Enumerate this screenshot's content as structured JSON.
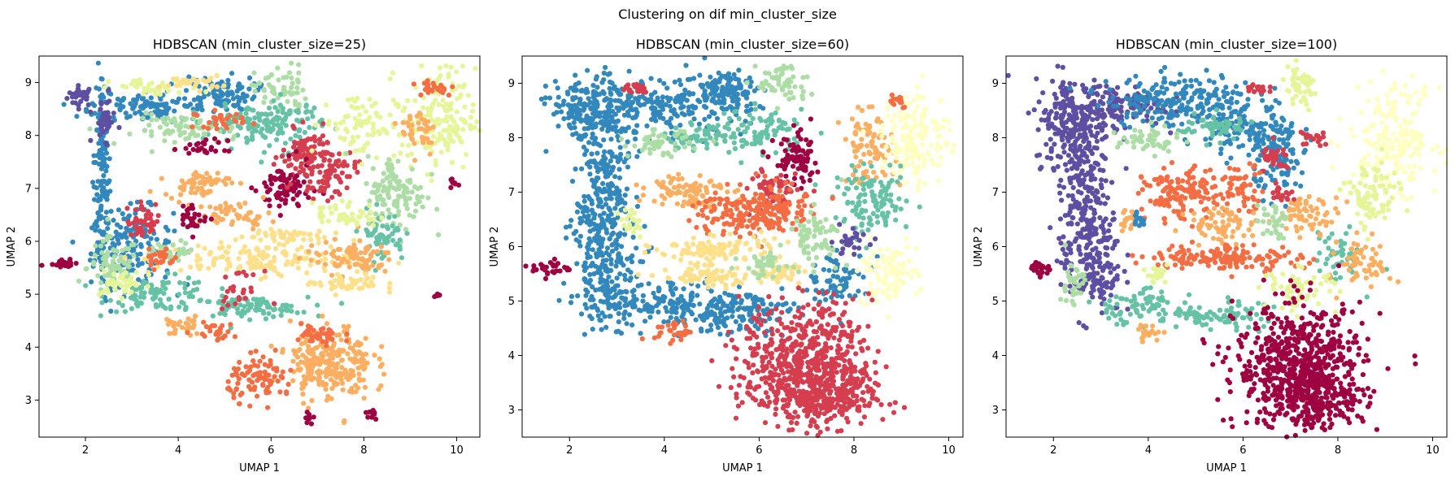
{
  "suptitle": "Clustering on dif min_cluster_size",
  "chart_data": [
    {
      "type": "scatter",
      "title": "HDBSCAN (min_cluster_size=25)",
      "xlabel": "UMAP 1",
      "ylabel": "UMAP 2",
      "xlim": [
        1.0,
        10.5
      ],
      "ylim": [
        2.3,
        9.5
      ],
      "xticks": [
        2,
        4,
        6,
        8,
        10
      ],
      "yticks": [
        3,
        4,
        5,
        6,
        7,
        8,
        9
      ],
      "colormap": "Spectral",
      "clusters": [
        {
          "color": "#5e4fa2",
          "x": 1.9,
          "y": 8.75,
          "rx": 0.18,
          "ry": 0.12,
          "n": 30
        },
        {
          "color": "#3288bd",
          "x": 2.35,
          "y": 7.2,
          "rx": 0.12,
          "ry": 1.4,
          "n": 150
        },
        {
          "color": "#3288bd",
          "x": 3.0,
          "y": 5.9,
          "rx": 0.55,
          "ry": 0.45,
          "n": 160
        },
        {
          "color": "#abdda4",
          "x": 2.6,
          "y": 5.5,
          "rx": 0.35,
          "ry": 0.35,
          "n": 80
        },
        {
          "color": "#66c2a5",
          "x": 3.6,
          "y": 5.0,
          "rx": 0.7,
          "ry": 0.2,
          "n": 90
        },
        {
          "color": "#66c2a5",
          "x": 5.5,
          "y": 4.75,
          "rx": 0.8,
          "ry": 0.12,
          "n": 90
        },
        {
          "color": "#3288bd",
          "x": 3.4,
          "y": 8.55,
          "rx": 0.8,
          "ry": 0.2,
          "n": 110
        },
        {
          "color": "#3288bd",
          "x": 4.9,
          "y": 8.8,
          "rx": 0.5,
          "ry": 0.2,
          "n": 90
        },
        {
          "color": "#abdda4",
          "x": 6.2,
          "y": 8.85,
          "rx": 0.35,
          "ry": 0.3,
          "n": 60
        },
        {
          "color": "#e6f598",
          "x": 3.5,
          "y": 8.9,
          "rx": 0.6,
          "ry": 0.1,
          "n": 40
        },
        {
          "color": "#fee08b",
          "x": 4.3,
          "y": 9.0,
          "rx": 0.4,
          "ry": 0.08,
          "n": 30
        },
        {
          "color": "#66c2a5",
          "x": 5.4,
          "y": 8.25,
          "rx": 0.7,
          "ry": 0.2,
          "n": 80
        },
        {
          "color": "#abdda4",
          "x": 4.2,
          "y": 8.1,
          "rx": 0.7,
          "ry": 0.18,
          "n": 70
        },
        {
          "color": "#f46d43",
          "x": 4.9,
          "y": 8.3,
          "rx": 0.35,
          "ry": 0.1,
          "n": 30
        },
        {
          "color": "#66c2a5",
          "x": 6.3,
          "y": 8.2,
          "rx": 0.5,
          "ry": 0.3,
          "n": 80
        },
        {
          "color": "#d53e4f",
          "x": 6.8,
          "y": 7.6,
          "rx": 0.35,
          "ry": 0.3,
          "n": 90
        },
        {
          "color": "#9e0142",
          "x": 6.3,
          "y": 7.0,
          "rx": 0.35,
          "ry": 0.3,
          "n": 80
        },
        {
          "color": "#d53e4f",
          "x": 7.2,
          "y": 7.3,
          "rx": 0.4,
          "ry": 0.3,
          "n": 70
        },
        {
          "color": "#e6f598",
          "x": 7.9,
          "y": 8.2,
          "rx": 0.5,
          "ry": 0.4,
          "n": 80
        },
        {
          "color": "#e6f598",
          "x": 9.6,
          "y": 8.3,
          "rx": 0.5,
          "ry": 0.6,
          "n": 170
        },
        {
          "color": "#fdae61",
          "x": 9.2,
          "y": 8.1,
          "rx": 0.25,
          "ry": 0.3,
          "n": 40
        },
        {
          "color": "#f46d43",
          "x": 9.5,
          "y": 8.9,
          "rx": 0.3,
          "ry": 0.1,
          "n": 25
        },
        {
          "color": "#abdda4",
          "x": 8.7,
          "y": 6.9,
          "rx": 0.4,
          "ry": 0.45,
          "n": 120
        },
        {
          "color": "#66c2a5",
          "x": 8.4,
          "y": 6.1,
          "rx": 0.3,
          "ry": 0.3,
          "n": 60
        },
        {
          "color": "#fdae61",
          "x": 4.4,
          "y": 7.1,
          "rx": 0.45,
          "ry": 0.15,
          "n": 60
        },
        {
          "color": "#fdae61",
          "x": 5.2,
          "y": 6.5,
          "rx": 0.5,
          "ry": 0.15,
          "n": 50
        },
        {
          "color": "#fee08b",
          "x": 5.6,
          "y": 5.65,
          "rx": 1.4,
          "ry": 0.18,
          "n": 140
        },
        {
          "color": "#fee08b",
          "x": 6.2,
          "y": 6.1,
          "rx": 0.6,
          "ry": 0.1,
          "n": 50
        },
        {
          "color": "#fdae61",
          "x": 7.7,
          "y": 5.7,
          "rx": 0.6,
          "ry": 0.2,
          "n": 80
        },
        {
          "color": "#fee08b",
          "x": 7.6,
          "y": 5.2,
          "rx": 0.5,
          "ry": 0.12,
          "n": 50
        },
        {
          "color": "#e6f598",
          "x": 7.6,
          "y": 6.5,
          "rx": 0.45,
          "ry": 0.15,
          "n": 50
        },
        {
          "color": "#abdda4",
          "x": 3.9,
          "y": 5.8,
          "rx": 0.3,
          "ry": 0.12,
          "n": 40
        },
        {
          "color": "#9e0142",
          "x": 4.3,
          "y": 6.45,
          "rx": 0.2,
          "ry": 0.15,
          "n": 30
        },
        {
          "color": "#d53e4f",
          "x": 3.3,
          "y": 6.4,
          "rx": 0.25,
          "ry": 0.2,
          "n": 40
        },
        {
          "color": "#f46d43",
          "x": 3.6,
          "y": 5.7,
          "rx": 0.2,
          "ry": 0.15,
          "n": 25
        },
        {
          "color": "#fdae61",
          "x": 7.3,
          "y": 3.7,
          "rx": 0.55,
          "ry": 0.45,
          "n": 220
        },
        {
          "color": "#f46d43",
          "x": 5.8,
          "y": 3.4,
          "rx": 0.45,
          "ry": 0.25,
          "n": 90
        },
        {
          "color": "#fdae61",
          "x": 6.9,
          "y": 3.6,
          "rx": 0.3,
          "ry": 0.2,
          "n": 40
        },
        {
          "color": "#f46d43",
          "x": 7.0,
          "y": 4.2,
          "rx": 0.35,
          "ry": 0.15,
          "n": 40
        },
        {
          "color": "#fdae61",
          "x": 4.1,
          "y": 4.4,
          "rx": 0.25,
          "ry": 0.12,
          "n": 30
        },
        {
          "color": "#f46d43",
          "x": 4.8,
          "y": 4.3,
          "rx": 0.3,
          "ry": 0.1,
          "n": 25
        },
        {
          "color": "#9e0142",
          "x": 1.5,
          "y": 5.6,
          "rx": 0.2,
          "ry": 0.06,
          "n": 25
        },
        {
          "color": "#9e0142",
          "x": 8.2,
          "y": 2.75,
          "rx": 0.1,
          "ry": 0.06,
          "n": 12
        },
        {
          "color": "#9e0142",
          "x": 6.8,
          "y": 2.65,
          "rx": 0.05,
          "ry": 0.06,
          "n": 8
        },
        {
          "color": "#9e0142",
          "x": 9.55,
          "y": 5.0,
          "rx": 0.04,
          "ry": 0.05,
          "n": 6
        },
        {
          "color": "#9e0142",
          "x": 9.9,
          "y": 7.1,
          "rx": 0.08,
          "ry": 0.05,
          "n": 8
        },
        {
          "color": "#d53e4f",
          "x": 5.3,
          "y": 5.1,
          "rx": 0.3,
          "ry": 0.2,
          "n": 25
        },
        {
          "color": "#9e0142",
          "x": 4.6,
          "y": 7.75,
          "rx": 0.3,
          "ry": 0.1,
          "n": 25
        },
        {
          "color": "#e6f598",
          "x": 2.8,
          "y": 5.2,
          "rx": 0.3,
          "ry": 0.15,
          "n": 40
        },
        {
          "color": "#5e4fa2",
          "x": 2.4,
          "y": 8.3,
          "rx": 0.15,
          "ry": 0.25,
          "n": 40
        }
      ]
    },
    {
      "type": "scatter",
      "title": "HDBSCAN (min_cluster_size=60)",
      "xlabel": "UMAP 1",
      "ylabel": "UMAP 2",
      "xlim": [
        1.0,
        10.3
      ],
      "ylim": [
        2.5,
        9.5
      ],
      "xticks": [
        2,
        4,
        6,
        8,
        10
      ],
      "yticks": [
        3,
        4,
        5,
        6,
        7,
        8,
        9
      ],
      "colormap": "Spectral",
      "clusters": [
        {
          "color": "#3288bd",
          "x": 2.4,
          "y": 8.5,
          "rx": 0.5,
          "ry": 0.35,
          "n": 160
        },
        {
          "color": "#3288bd",
          "x": 2.7,
          "y": 7.1,
          "rx": 0.35,
          "ry": 1.0,
          "n": 220
        },
        {
          "color": "#3288bd",
          "x": 2.8,
          "y": 5.7,
          "rx": 0.45,
          "ry": 0.7,
          "n": 200
        },
        {
          "color": "#3288bd",
          "x": 4.1,
          "y": 4.95,
          "rx": 1.2,
          "ry": 0.25,
          "n": 190
        },
        {
          "color": "#3288bd",
          "x": 5.6,
          "y": 4.8,
          "rx": 0.7,
          "ry": 0.25,
          "n": 120
        },
        {
          "color": "#3288bd",
          "x": 3.8,
          "y": 8.55,
          "rx": 1.2,
          "ry": 0.3,
          "n": 240
        },
        {
          "color": "#3288bd",
          "x": 5.3,
          "y": 8.9,
          "rx": 0.5,
          "ry": 0.25,
          "n": 110
        },
        {
          "color": "#3288bd",
          "x": 7.7,
          "y": 5.4,
          "rx": 0.4,
          "ry": 0.3,
          "n": 80
        },
        {
          "color": "#abdda4",
          "x": 6.5,
          "y": 9.0,
          "rx": 0.35,
          "ry": 0.25,
          "n": 60
        },
        {
          "color": "#66c2a5",
          "x": 6.0,
          "y": 8.1,
          "rx": 0.6,
          "ry": 0.25,
          "n": 100
        },
        {
          "color": "#66c2a5",
          "x": 4.6,
          "y": 8.0,
          "rx": 0.4,
          "ry": 0.12,
          "n": 50
        },
        {
          "color": "#abdda4",
          "x": 3.9,
          "y": 7.9,
          "rx": 0.4,
          "ry": 0.15,
          "n": 50
        },
        {
          "color": "#9e0142",
          "x": 6.8,
          "y": 7.55,
          "rx": 0.3,
          "ry": 0.3,
          "n": 80
        },
        {
          "color": "#d53e4f",
          "x": 6.3,
          "y": 7.0,
          "rx": 0.3,
          "ry": 0.3,
          "n": 70
        },
        {
          "color": "#fdae61",
          "x": 8.3,
          "y": 7.8,
          "rx": 0.35,
          "ry": 0.4,
          "n": 90
        },
        {
          "color": "#ffffbf",
          "x": 9.3,
          "y": 8.0,
          "rx": 0.45,
          "ry": 0.55,
          "n": 160
        },
        {
          "color": "#66c2a5",
          "x": 8.4,
          "y": 6.8,
          "rx": 0.5,
          "ry": 0.35,
          "n": 120
        },
        {
          "color": "#ffffbf",
          "x": 8.7,
          "y": 5.5,
          "rx": 0.4,
          "ry": 0.35,
          "n": 100
        },
        {
          "color": "#fdae61",
          "x": 4.5,
          "y": 7.05,
          "rx": 0.5,
          "ry": 0.2,
          "n": 90
        },
        {
          "color": "#f46d43",
          "x": 5.7,
          "y": 6.6,
          "rx": 0.7,
          "ry": 0.3,
          "n": 160
        },
        {
          "color": "#f46d43",
          "x": 6.5,
          "y": 6.7,
          "rx": 0.3,
          "ry": 0.25,
          "n": 60
        },
        {
          "color": "#fee08b",
          "x": 5.1,
          "y": 5.95,
          "rx": 0.8,
          "ry": 0.15,
          "n": 110
        },
        {
          "color": "#fee08b",
          "x": 4.9,
          "y": 5.45,
          "rx": 0.6,
          "ry": 0.12,
          "n": 70
        },
        {
          "color": "#fee08b",
          "x": 6.4,
          "y": 5.5,
          "rx": 0.3,
          "ry": 0.12,
          "n": 40
        },
        {
          "color": "#abdda4",
          "x": 7.2,
          "y": 6.2,
          "rx": 0.35,
          "ry": 0.3,
          "n": 70
        },
        {
          "color": "#abdda4",
          "x": 6.1,
          "y": 5.65,
          "rx": 0.3,
          "ry": 0.15,
          "n": 40
        },
        {
          "color": "#5e4fa2",
          "x": 7.9,
          "y": 6.1,
          "rx": 0.25,
          "ry": 0.15,
          "n": 30
        },
        {
          "color": "#e6f598",
          "x": 3.3,
          "y": 6.45,
          "rx": 0.15,
          "ry": 0.15,
          "n": 20
        },
        {
          "color": "#d53e4f",
          "x": 7.0,
          "y": 3.8,
          "rx": 0.85,
          "ry": 0.7,
          "n": 650
        },
        {
          "color": "#d53e4f",
          "x": 7.5,
          "y": 3.2,
          "rx": 0.6,
          "ry": 0.3,
          "n": 150
        },
        {
          "color": "#f46d43",
          "x": 4.2,
          "y": 4.45,
          "rx": 0.25,
          "ry": 0.12,
          "n": 30
        },
        {
          "color": "#9e0142",
          "x": 1.6,
          "y": 5.6,
          "rx": 0.25,
          "ry": 0.1,
          "n": 30
        },
        {
          "color": "#d53e4f",
          "x": 3.4,
          "y": 8.9,
          "rx": 0.2,
          "ry": 0.08,
          "n": 20
        },
        {
          "color": "#f46d43",
          "x": 8.9,
          "y": 8.7,
          "rx": 0.15,
          "ry": 0.1,
          "n": 15
        }
      ]
    },
    {
      "type": "scatter",
      "title": "HDBSCAN (min_cluster_size=100)",
      "xlabel": "UMAP 1",
      "ylabel": "UMAP 2",
      "xlim": [
        1.0,
        10.3
      ],
      "ylim": [
        2.5,
        9.5
      ],
      "xticks": [
        2,
        4,
        6,
        8,
        10
      ],
      "yticks": [
        3,
        4,
        5,
        6,
        7,
        8,
        9
      ],
      "colormap": "Spectral",
      "clusters": [
        {
          "color": "#5e4fa2",
          "x": 2.4,
          "y": 8.3,
          "rx": 0.5,
          "ry": 0.5,
          "n": 180
        },
        {
          "color": "#5e4fa2",
          "x": 2.6,
          "y": 7.2,
          "rx": 0.3,
          "ry": 0.8,
          "n": 170
        },
        {
          "color": "#5e4fa2",
          "x": 3.2,
          "y": 8.6,
          "rx": 0.7,
          "ry": 0.25,
          "n": 130
        },
        {
          "color": "#5e4fa2",
          "x": 2.8,
          "y": 5.8,
          "rx": 0.4,
          "ry": 0.7,
          "n": 200
        },
        {
          "color": "#3288bd",
          "x": 4.7,
          "y": 8.7,
          "rx": 1.0,
          "ry": 0.3,
          "n": 220
        },
        {
          "color": "#3288bd",
          "x": 6.2,
          "y": 8.1,
          "rx": 0.6,
          "ry": 0.3,
          "n": 130
        },
        {
          "color": "#3288bd",
          "x": 6.8,
          "y": 7.5,
          "rx": 0.35,
          "ry": 0.35,
          "n": 80
        },
        {
          "color": "#d53e4f",
          "x": 6.7,
          "y": 7.6,
          "rx": 0.2,
          "ry": 0.15,
          "n": 30
        },
        {
          "color": "#e6f598",
          "x": 7.2,
          "y": 8.9,
          "rx": 0.25,
          "ry": 0.25,
          "n": 50
        },
        {
          "color": "#d53e4f",
          "x": 6.3,
          "y": 8.9,
          "rx": 0.15,
          "ry": 0.1,
          "n": 15
        },
        {
          "color": "#d53e4f",
          "x": 7.5,
          "y": 8.0,
          "rx": 0.2,
          "ry": 0.1,
          "n": 20
        },
        {
          "color": "#ffffbf",
          "x": 9.2,
          "y": 8.0,
          "rx": 0.6,
          "ry": 0.6,
          "n": 200
        },
        {
          "color": "#e6f598",
          "x": 8.7,
          "y": 6.9,
          "rx": 0.35,
          "ry": 0.4,
          "n": 90
        },
        {
          "color": "#66c2a5",
          "x": 8.0,
          "y": 5.8,
          "rx": 0.3,
          "ry": 0.3,
          "n": 50
        },
        {
          "color": "#fdae61",
          "x": 8.6,
          "y": 5.7,
          "rx": 0.35,
          "ry": 0.3,
          "n": 60
        },
        {
          "color": "#66c2a5",
          "x": 5.4,
          "y": 8.2,
          "rx": 0.5,
          "ry": 0.15,
          "n": 60
        },
        {
          "color": "#abdda4",
          "x": 4.0,
          "y": 7.95,
          "rx": 0.4,
          "ry": 0.15,
          "n": 50
        },
        {
          "color": "#f46d43",
          "x": 4.7,
          "y": 6.95,
          "rx": 0.5,
          "ry": 0.3,
          "n": 140
        },
        {
          "color": "#f46d43",
          "x": 6.0,
          "y": 7.1,
          "rx": 0.3,
          "ry": 0.25,
          "n": 50
        },
        {
          "color": "#d53e4f",
          "x": 6.8,
          "y": 7.0,
          "rx": 0.15,
          "ry": 0.12,
          "n": 20
        },
        {
          "color": "#fdae61",
          "x": 5.6,
          "y": 6.4,
          "rx": 0.5,
          "ry": 0.2,
          "n": 70
        },
        {
          "color": "#fdae61",
          "x": 7.4,
          "y": 6.6,
          "rx": 0.4,
          "ry": 0.2,
          "n": 60
        },
        {
          "color": "#f46d43",
          "x": 5.6,
          "y": 5.8,
          "rx": 1.0,
          "ry": 0.15,
          "n": 150
        },
        {
          "color": "#fdae61",
          "x": 3.6,
          "y": 6.5,
          "rx": 0.15,
          "ry": 0.15,
          "n": 20
        },
        {
          "color": "#abdda4",
          "x": 6.6,
          "y": 6.5,
          "rx": 0.2,
          "ry": 0.2,
          "n": 30
        },
        {
          "color": "#abdda4",
          "x": 2.4,
          "y": 5.3,
          "rx": 0.15,
          "ry": 0.3,
          "n": 40
        },
        {
          "color": "#66c2a5",
          "x": 3.7,
          "y": 4.9,
          "rx": 0.6,
          "ry": 0.2,
          "n": 70
        },
        {
          "color": "#66c2a5",
          "x": 5.0,
          "y": 4.7,
          "rx": 0.5,
          "ry": 0.12,
          "n": 50
        },
        {
          "color": "#66c2a5",
          "x": 6.0,
          "y": 4.75,
          "rx": 0.4,
          "ry": 0.15,
          "n": 40
        },
        {
          "color": "#e6f598",
          "x": 7.2,
          "y": 5.2,
          "rx": 0.5,
          "ry": 0.25,
          "n": 60
        },
        {
          "color": "#e6f598",
          "x": 4.2,
          "y": 5.5,
          "rx": 0.15,
          "ry": 0.12,
          "n": 20
        },
        {
          "color": "#fdae61",
          "x": 4.0,
          "y": 4.4,
          "rx": 0.2,
          "ry": 0.1,
          "n": 20
        },
        {
          "color": "#9e0142",
          "x": 7.2,
          "y": 3.8,
          "rx": 0.85,
          "ry": 0.7,
          "n": 650
        },
        {
          "color": "#9e0142",
          "x": 7.6,
          "y": 3.2,
          "rx": 0.6,
          "ry": 0.3,
          "n": 160
        },
        {
          "color": "#9e0142",
          "x": 1.7,
          "y": 5.6,
          "rx": 0.15,
          "ry": 0.1,
          "n": 25
        },
        {
          "color": "#3288bd",
          "x": 3.8,
          "y": 6.5,
          "rx": 0.1,
          "ry": 0.1,
          "n": 12
        }
      ]
    }
  ]
}
